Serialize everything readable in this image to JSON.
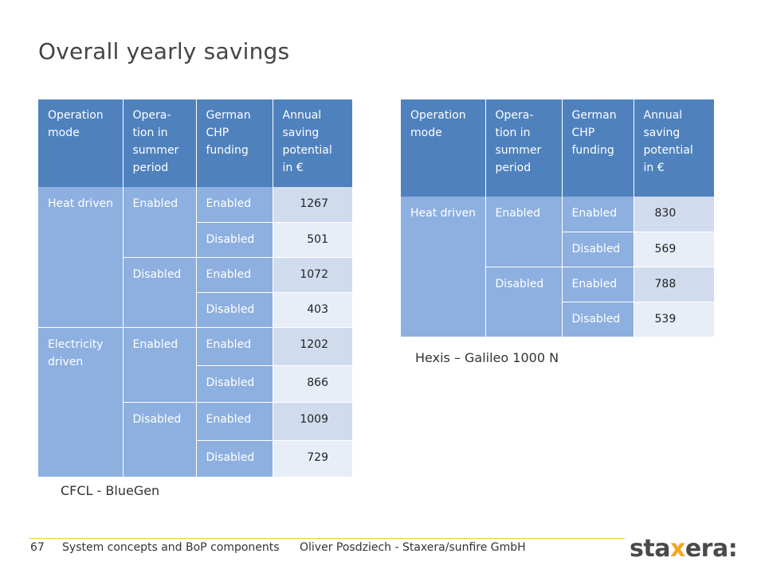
{
  "title": "Overall yearly savings",
  "headers": [
    "Operation mode",
    "Opera-tion in summer period",
    "German CHP funding",
    "Annual saving potential in €"
  ],
  "header_lines": [
    [
      "Operation",
      "mode"
    ],
    [
      "Opera-",
      "tion in",
      "summer",
      "period"
    ],
    [
      "German",
      "CHP",
      "funding"
    ],
    [
      "Annual",
      "saving",
      "potential",
      "in €"
    ]
  ],
  "table_left": {
    "caption": "CFCL - BlueGen",
    "modes": [
      {
        "mode": [
          "Heat driven"
        ],
        "groups": [
          {
            "summer": "Enabled",
            "rows": [
              {
                "funding": "Enabled",
                "value": "1267"
              },
              {
                "funding": "Disabled",
                "value": "501"
              }
            ]
          },
          {
            "summer": "Disabled",
            "rows": [
              {
                "funding": "Enabled",
                "value": "1072"
              },
              {
                "funding": "Disabled",
                "value": "403"
              }
            ]
          }
        ]
      },
      {
        "mode": [
          "Electricity",
          "driven"
        ],
        "groups": [
          {
            "summer": "Enabled",
            "rows": [
              {
                "funding": "Enabled",
                "value": "1202"
              },
              {
                "funding": "Disabled",
                "value": "866"
              }
            ]
          },
          {
            "summer": "Disabled",
            "rows": [
              {
                "funding": "Enabled",
                "value": "1009"
              },
              {
                "funding": "Disabled",
                "value": "729"
              }
            ]
          }
        ]
      }
    ]
  },
  "table_right": {
    "caption": "Hexis – Galileo 1000 N",
    "modes": [
      {
        "mode": [
          "Heat driven"
        ],
        "groups": [
          {
            "summer": "Enabled",
            "rows": [
              {
                "funding": "Enabled",
                "value": "830"
              },
              {
                "funding": "Disabled",
                "value": "569"
              }
            ]
          },
          {
            "summer": "Disabled",
            "rows": [
              {
                "funding": "Enabled",
                "value": "788"
              },
              {
                "funding": "Disabled",
                "value": "539"
              }
            ]
          }
        ]
      }
    ]
  },
  "footer": {
    "page_number": "67",
    "section": "System concepts and BoP components",
    "author": "Oliver Posdziech - Staxera/sunfire GmbH"
  },
  "logo": {
    "pre": "sta",
    "x": "x",
    "post": "era:"
  },
  "colors": {
    "header": "#4f81bd",
    "body_left": "#8eb0e0",
    "value_a": "#d0dcee",
    "value_b": "#e8eef8",
    "accent": "#f5a623",
    "rule": "#f2c84b"
  }
}
